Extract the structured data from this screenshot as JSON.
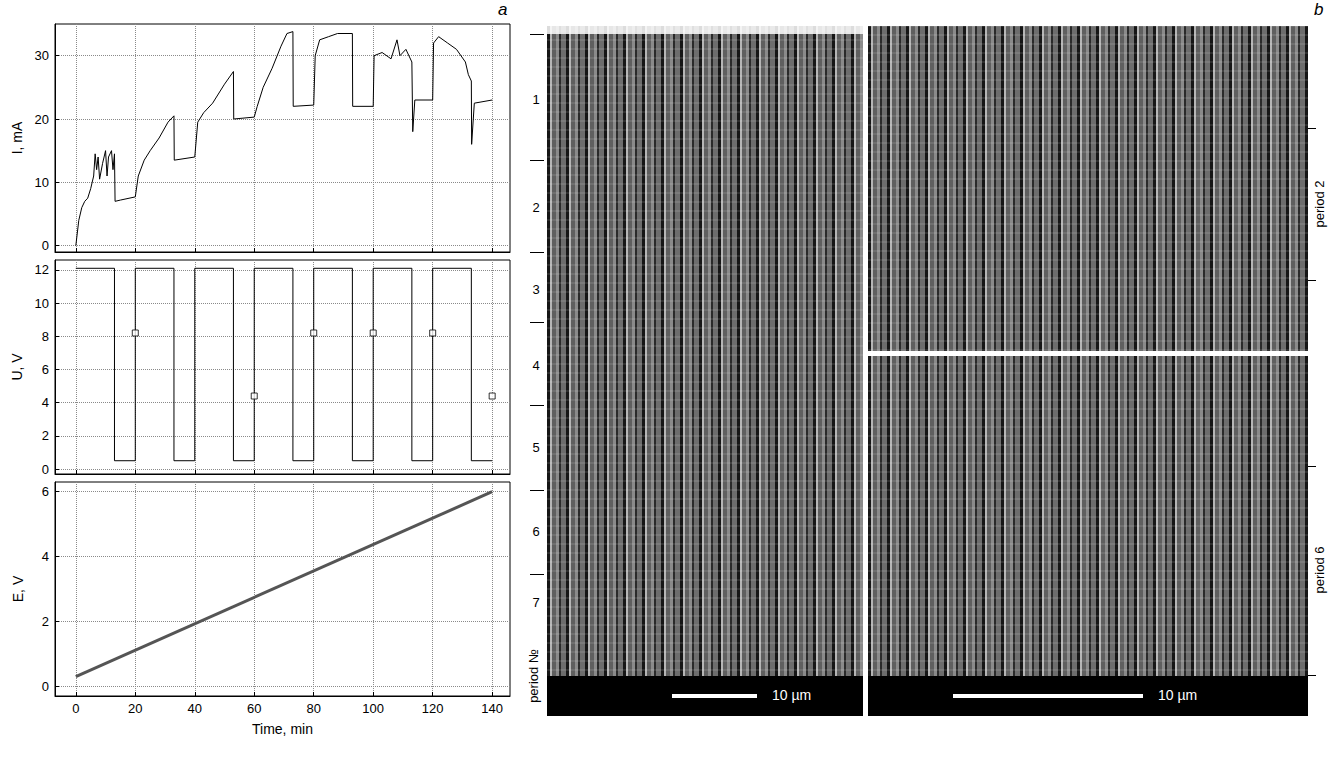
{
  "chart_data": [
    {
      "type": "line",
      "y_label": "I, mA",
      "xlim": [
        -7,
        146
      ],
      "xticks": [
        0,
        20,
        40,
        60,
        80,
        100,
        120,
        140
      ],
      "ylim": [
        -1,
        35
      ],
      "yticks": [
        0,
        10,
        20,
        30
      ],
      "grid": true,
      "tick_labels": "y",
      "series": [
        {
          "type": "line",
          "color": "#000000",
          "line_style": "solid",
          "x": [
            0,
            1,
            2,
            3,
            4,
            5,
            6,
            6.5,
            7,
            7.5,
            8,
            9,
            10,
            10.5,
            11,
            12,
            12.5,
            13,
            13.2,
            15,
            20,
            21,
            23,
            25,
            28,
            31,
            33,
            33.1,
            40,
            41,
            43,
            46,
            50,
            53,
            53.1,
            60,
            61,
            63,
            66,
            69,
            71,
            73,
            73.1,
            80,
            80.5,
            82,
            85,
            88,
            93,
            93.1,
            100,
            100.3,
            103,
            106,
            108,
            109,
            111,
            113,
            113.3,
            114,
            120,
            120.3,
            122,
            125,
            128,
            131,
            132,
            133,
            133.1,
            134,
            140
          ],
          "values": [
            0,
            4,
            6,
            7,
            7.5,
            9,
            11,
            14.5,
            12,
            14,
            10.5,
            13,
            15,
            11,
            14,
            15,
            12,
            14.5,
            7,
            7.2,
            7.7,
            11,
            13.5,
            15,
            17,
            19.5,
            20.5,
            13.5,
            14,
            19.5,
            21,
            22.5,
            25.5,
            27.5,
            20,
            20.3,
            22,
            25,
            28,
            31.5,
            33.5,
            33.8,
            22,
            22.2,
            30,
            32.5,
            33,
            33.5,
            33.5,
            22,
            22,
            30,
            30.5,
            29.5,
            32.5,
            30,
            31,
            29,
            18,
            23,
            23,
            32,
            33,
            32,
            31,
            29,
            27,
            26,
            16,
            22.5,
            23
          ]
        }
      ]
    },
    {
      "type": "line",
      "y_label": "U, V",
      "xlim": [
        -7,
        146
      ],
      "xticks": [
        0,
        20,
        40,
        60,
        80,
        100,
        120,
        140
      ],
      "ylim": [
        -0.3,
        12.6
      ],
      "yticks": [
        0,
        2,
        4,
        6,
        8,
        10,
        12
      ],
      "grid": true,
      "tick_labels": "y",
      "series": [
        {
          "type": "line",
          "color": "#000000",
          "line_style": "solid",
          "x": [
            0,
            13,
            13,
            20,
            20,
            33,
            33,
            40,
            40,
            53,
            53,
            60,
            60,
            73,
            73,
            80,
            80,
            93,
            93,
            100,
            100,
            113,
            113,
            120,
            120,
            133,
            133,
            140
          ],
          "values": [
            12.1,
            12.1,
            0.5,
            0.5,
            12.1,
            12.1,
            0.5,
            0.5,
            12.1,
            12.1,
            0.5,
            0.5,
            12.1,
            12.1,
            0.5,
            0.5,
            12.1,
            12.1,
            0.5,
            0.5,
            12.1,
            12.1,
            0.5,
            0.5,
            12.1,
            12.1,
            0.5,
            0.5
          ]
        },
        {
          "type": "scatter",
          "color": "#000000",
          "marker": "square",
          "x": [
            20,
            60,
            80,
            100,
            120,
            140
          ],
          "values": [
            8.2,
            4.4,
            8.2,
            8.2,
            8.2,
            4.4
          ]
        }
      ]
    },
    {
      "type": "line",
      "y_label": "E, V",
      "x_label": "Time, min",
      "xlim": [
        -7,
        146
      ],
      "xticks": [
        0,
        20,
        40,
        60,
        80,
        100,
        120,
        140
      ],
      "ylim": [
        -0.3,
        6.3
      ],
      "yticks": [
        0,
        2,
        4,
        6
      ],
      "grid": true,
      "series": [
        {
          "type": "line",
          "color": "#555555",
          "line_style": "solid",
          "x": [
            0,
            140
          ],
          "values": [
            0.3,
            6
          ]
        }
      ]
    }
  ],
  "figure": {
    "panel_labels": [
      "a",
      "b"
    ],
    "micrographs": {
      "overview": {
        "period_labels": [
          1,
          2,
          3,
          4,
          5,
          6,
          7
        ],
        "axis_label": "period №",
        "scale_bar": "10 µm"
      },
      "detail_top": {
        "label": "period 2"
      },
      "detail_bottom": {
        "label": "period 6",
        "scale_bar": "10 µm"
      }
    }
  }
}
